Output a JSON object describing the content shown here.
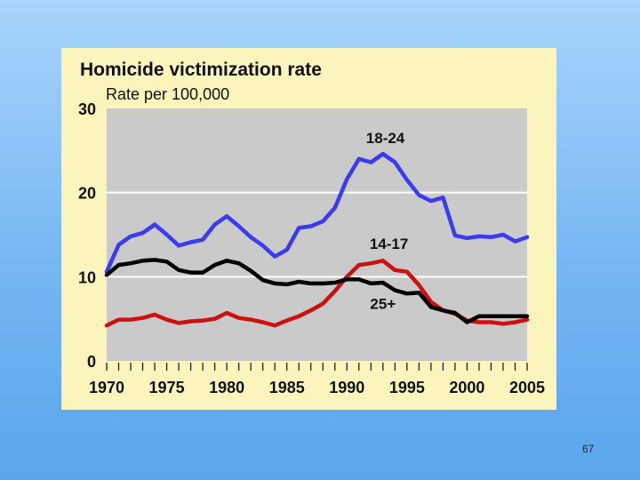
{
  "slide": {
    "page_number": "67"
  },
  "colors": {
    "background": "#8cc4f7",
    "panel": "#fbf4bd",
    "plot": "#cacaca",
    "series_18_24": "#3b3bf0",
    "series_14_17": "#cc1111",
    "series_25_plus": "#000000"
  },
  "chart_data": {
    "type": "line",
    "title": "Homicide victimization rate",
    "ylabel": "Rate per 100,000",
    "xlabel": "",
    "xlim": [
      1970,
      2005
    ],
    "ylim": [
      0,
      30
    ],
    "grid": "horizontal",
    "y_ticks": [
      "0",
      "10",
      "20",
      "30"
    ],
    "x_ticks": [
      "1970",
      "1975",
      "1980",
      "1985",
      "1990",
      "1995",
      "2000",
      "2005"
    ],
    "x": [
      1970,
      1971,
      1972,
      1973,
      1974,
      1975,
      1976,
      1977,
      1978,
      1979,
      1980,
      1981,
      1982,
      1983,
      1984,
      1985,
      1986,
      1987,
      1988,
      1989,
      1990,
      1991,
      1992,
      1993,
      1994,
      1995,
      1996,
      1997,
      1998,
      1999,
      2000,
      2001,
      2002,
      2003,
      2004,
      2005
    ],
    "series": [
      {
        "name": "18-24",
        "values": [
          10.6,
          13.8,
          14.8,
          15.2,
          16.2,
          15.0,
          13.7,
          14.1,
          14.4,
          16.2,
          17.2,
          16.0,
          14.7,
          13.7,
          12.4,
          13.2,
          15.8,
          16.0,
          16.6,
          18.2,
          21.6,
          24.0,
          23.6,
          24.6,
          23.6,
          21.5,
          19.7,
          19.0,
          19.4,
          14.9,
          14.6,
          14.8,
          14.7,
          15.0,
          14.2,
          14.7
        ]
      },
      {
        "name": "14-17",
        "values": [
          4.2,
          4.9,
          4.9,
          5.1,
          5.5,
          4.9,
          4.5,
          4.7,
          4.8,
          5.0,
          5.7,
          5.1,
          4.9,
          4.6,
          4.2,
          4.8,
          5.3,
          6.0,
          6.8,
          8.3,
          10.0,
          11.4,
          11.6,
          11.9,
          10.8,
          10.6,
          9.0,
          7.0,
          6.0,
          5.6,
          4.8,
          4.6,
          4.6,
          4.4,
          4.6,
          4.9
        ]
      },
      {
        "name": "25+",
        "values": [
          10.2,
          11.4,
          11.6,
          11.9,
          12.0,
          11.8,
          10.8,
          10.5,
          10.5,
          11.4,
          11.9,
          11.6,
          10.7,
          9.6,
          9.2,
          9.1,
          9.4,
          9.2,
          9.2,
          9.3,
          9.7,
          9.7,
          9.2,
          9.3,
          8.4,
          8.0,
          8.1,
          6.4,
          6.0,
          5.7,
          4.6,
          5.3,
          5.3,
          5.3,
          5.3,
          5.3
        ]
      }
    ],
    "series_labels": [
      {
        "text": "18-24",
        "x": 1993.2,
        "y": 25.9
      },
      {
        "text": "14-17",
        "x": 1993.5,
        "y": 13.3
      },
      {
        "text": "25+",
        "x": 1993.0,
        "y": 6.2
      }
    ]
  }
}
